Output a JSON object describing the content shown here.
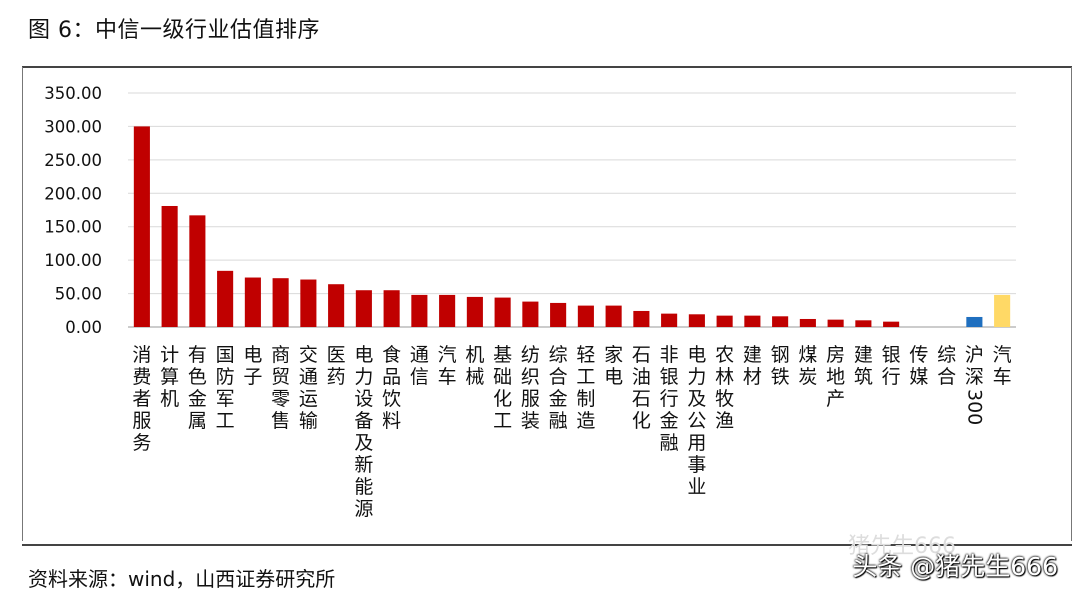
{
  "title": "图 6：中信一级行业估值排序",
  "source": "资料来源：wind，山西证券研究所",
  "watermark": "头条 @猪先生666",
  "watermark_faint": "猪先生666",
  "colors": {
    "default": "#C00000",
    "hs300": "#1F6FBF",
    "auto": "#FFD966",
    "grid": "#D9D9D9",
    "axis": "#999999"
  },
  "chart_data": {
    "type": "bar",
    "title": "图 6：中信一级行业估值排序",
    "xlabel": "",
    "ylabel": "",
    "ylim": [
      0,
      350
    ],
    "yticks": [
      "0.00",
      "50.00",
      "100.00",
      "150.00",
      "200.00",
      "250.00",
      "300.00",
      "350.00"
    ],
    "grid": true,
    "legend": "none",
    "categories": [
      "消费者服务",
      "计算机",
      "有色金属",
      "国防军工",
      "电子",
      "商贸零售",
      "交通运输",
      "医药",
      "电力设备及新能源",
      "食品饮料",
      "通信",
      "汽车",
      "机械",
      "基础化工",
      "纺织服装",
      "综合金融",
      "轻工制造",
      "家电",
      "石油石化",
      "非银行金融",
      "电力及公用事业",
      "农林牧渔",
      "建材",
      "钢铁",
      "煤炭",
      "房地产",
      "建筑",
      "银行",
      "传媒",
      "综合",
      "沪深300",
      "汽车"
    ],
    "values": [
      300,
      181,
      167,
      84,
      74,
      73,
      71,
      64,
      55,
      55,
      48,
      48,
      45,
      44,
      38,
      36,
      32,
      32,
      24,
      20,
      19,
      17,
      17,
      16,
      12,
      11,
      10,
      8,
      0,
      0,
      15,
      48
    ],
    "bar_colors": [
      "#C00000",
      "#C00000",
      "#C00000",
      "#C00000",
      "#C00000",
      "#C00000",
      "#C00000",
      "#C00000",
      "#C00000",
      "#C00000",
      "#C00000",
      "#C00000",
      "#C00000",
      "#C00000",
      "#C00000",
      "#C00000",
      "#C00000",
      "#C00000",
      "#C00000",
      "#C00000",
      "#C00000",
      "#C00000",
      "#C00000",
      "#C00000",
      "#C00000",
      "#C00000",
      "#C00000",
      "#C00000",
      "#C00000",
      "#C00000",
      "#1F6FBF",
      "#FFD966"
    ]
  }
}
